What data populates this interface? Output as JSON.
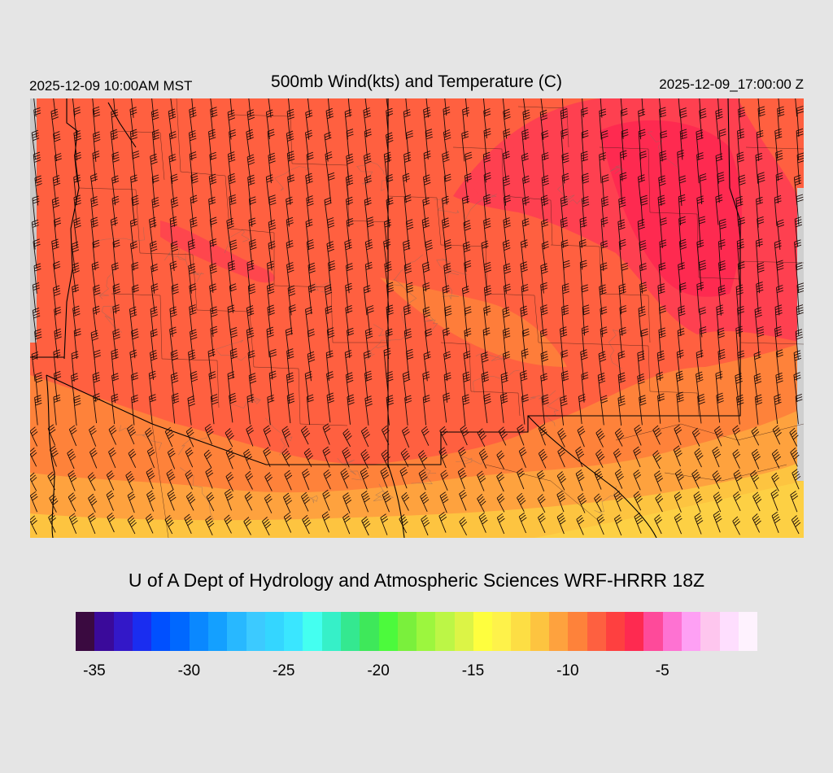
{
  "header": {
    "local_time": "2025-12-09 10:00AM MST",
    "title": "500mb Wind(kts) and Temperature (C)",
    "valid_time": "2025-12-09_17:00:00 Z"
  },
  "footer": {
    "credit": "U of A Dept of Hydrology and Atmospheric Sciences WRF-HRRR 18Z"
  },
  "colorbar": {
    "colors": [
      "#3a0a40",
      "#3a0a9a",
      "#3318c8",
      "#1a2df0",
      "#0050ff",
      "#0068ff",
      "#0a88ff",
      "#14a0ff",
      "#28b8ff",
      "#3ccaff",
      "#34d6ff",
      "#3ae6ff",
      "#44fff0",
      "#36f0c8",
      "#34e890",
      "#3ee85a",
      "#4cfa3c",
      "#7af03c",
      "#9cf63e",
      "#bcf646",
      "#dcf446",
      "#fefe3e",
      "#fef24a",
      "#fdde44",
      "#fdc440",
      "#fea23e",
      "#fe823a",
      "#fe6040",
      "#fe4040",
      "#fe2a50",
      "#fe4a9a",
      "#fe72d2",
      "#fea0f4",
      "#fec6ee",
      "#fedefe",
      "#fef2fe"
    ],
    "tick_labels": [
      "-35",
      "-30",
      "-25",
      "-20",
      "-15",
      "-10",
      "-5"
    ]
  },
  "map": {
    "field": "500mb temperature (C) with wind barbs (kts)",
    "dominant_colors": [
      "#ff6040",
      "#fe823a",
      "#fea23e",
      "#fdc440",
      "#fe4050",
      "#fe2a50"
    ]
  }
}
